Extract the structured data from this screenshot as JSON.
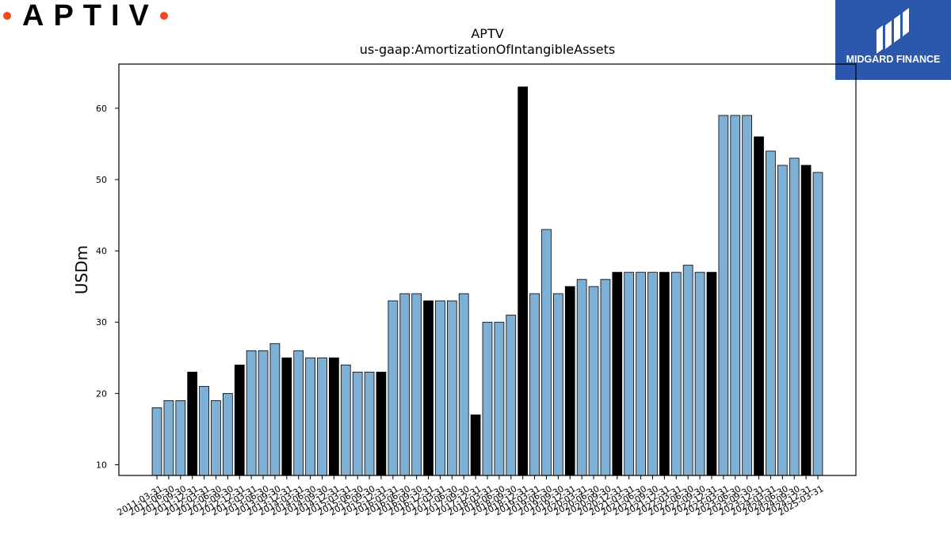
{
  "branding": {
    "left_logo_text": "APTIV",
    "right_logo_text": "MIDGARD FINANCE",
    "accent_color": "#f4461f",
    "badge_color": "#2b58ad"
  },
  "chart_data": {
    "type": "bar",
    "title": "APTV",
    "subtitle": "us-gaap:AmortizationOfIntangibleAssets",
    "xlabel": "",
    "ylabel": "USDm",
    "ylim": [
      8.5,
      66.2
    ],
    "yticks": [
      10,
      20,
      30,
      40,
      50,
      60
    ],
    "grid": false,
    "colors": {
      "quarter": "#7eb0d5",
      "annual": "#000000",
      "edge": "#000000"
    },
    "categories": [
      "2011-03-31",
      "2011-06-30",
      "2011-09-30",
      "2011-12-31",
      "2012-03-31",
      "2012-06-30",
      "2012-09-30",
      "2012-12-31",
      "2013-03-31",
      "2013-06-30",
      "2013-09-30",
      "2013-12-31",
      "2014-03-31",
      "2014-06-30",
      "2014-09-30",
      "2014-12-31",
      "2015-03-31",
      "2015-06-30",
      "2015-09-30",
      "2015-12-31",
      "2016-03-31",
      "2016-06-30",
      "2016-09-30",
      "2016-12-31",
      "2017-03-31",
      "2017-06-30",
      "2017-09-30",
      "2017-12-31",
      "2018-03-31",
      "2018-06-30",
      "2018-09-30",
      "2018-12-31",
      "2019-03-31",
      "2019-06-30",
      "2019-09-30",
      "2019-12-31",
      "2020-03-31",
      "2020-06-30",
      "2020-09-30",
      "2020-12-31",
      "2021-03-31",
      "2021-06-30",
      "2021-09-30",
      "2021-12-31",
      "2022-03-31",
      "2022-06-30",
      "2022-09-30",
      "2022-12-31",
      "2023-03-31",
      "2023-06-30",
      "2023-09-30",
      "2023-12-31",
      "2024-03-31",
      "2024-06-30",
      "2024-09-30",
      "2024-12-31",
      "2025-03-31"
    ],
    "values": [
      18,
      19,
      19,
      23,
      21,
      19,
      20,
      24,
      26,
      26,
      27,
      25,
      26,
      25,
      25,
      25,
      24,
      23,
      23,
      23,
      33,
      34,
      34,
      33,
      33,
      33,
      34,
      17,
      30,
      30,
      31,
      63,
      34,
      43,
      34,
      35,
      36,
      35,
      36,
      37,
      37,
      37,
      37,
      37,
      37,
      38,
      37,
      37,
      59,
      59,
      59,
      56,
      54,
      52,
      53,
      52,
      51
    ],
    "annual_flags": [
      0,
      0,
      0,
      1,
      0,
      0,
      0,
      1,
      0,
      0,
      0,
      1,
      0,
      0,
      0,
      1,
      0,
      0,
      0,
      1,
      0,
      0,
      0,
      1,
      0,
      0,
      0,
      1,
      0,
      0,
      0,
      1,
      0,
      0,
      0,
      1,
      0,
      0,
      0,
      1,
      0,
      0,
      0,
      1,
      0,
      0,
      0,
      1,
      0,
      0,
      0,
      1,
      0,
      0,
      0,
      1,
      0
    ]
  }
}
